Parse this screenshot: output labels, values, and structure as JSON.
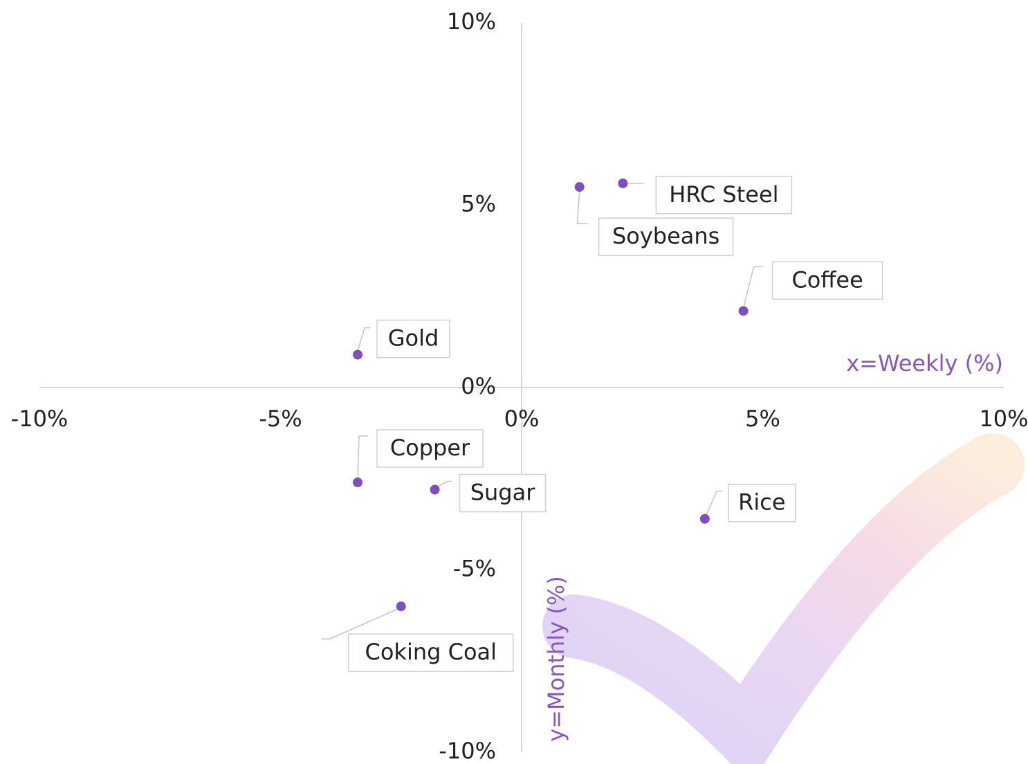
{
  "chart_data": {
    "type": "scatter",
    "x_label": "x=Weekly (%)",
    "y_label": "y=Monthly (%)",
    "labels": [
      "HRC Steel",
      "Soybeans",
      "Coffee",
      "Gold",
      "Copper",
      "Sugar",
      "Rice",
      "Coking Coal"
    ],
    "x": [
      2.1,
      1.2,
      4.6,
      -3.4,
      -3.4,
      -1.8,
      3.8,
      -2.5
    ],
    "y": [
      5.6,
      5.5,
      2.1,
      0.9,
      -2.6,
      -2.8,
      -3.6,
      -6.0
    ],
    "color": "#7e4fbf",
    "xlim": [
      -10,
      10
    ],
    "ylim": [
      -10,
      10
    ],
    "xticks": [
      {
        "value": -10,
        "label": "-10%"
      },
      {
        "value": -5,
        "label": "-5%"
      },
      {
        "value": 0,
        "label": "0%"
      },
      {
        "value": 5,
        "label": "5%"
      },
      {
        "value": 10,
        "label": "10%"
      }
    ],
    "yticks": [
      {
        "value": -10,
        "label": "-10%"
      },
      {
        "value": -5,
        "label": "-5%"
      },
      {
        "value": 0,
        "label": "0%"
      },
      {
        "value": 5,
        "label": "5%"
      },
      {
        "value": 10,
        "label": "10%"
      }
    ],
    "grid": false
  }
}
